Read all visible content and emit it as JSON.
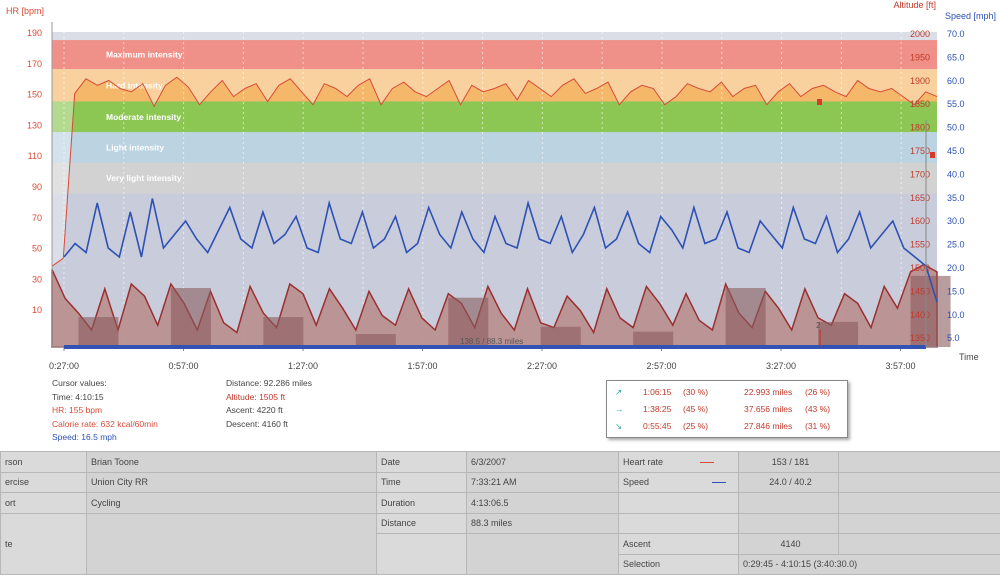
{
  "axes": {
    "hr_title": "HR [bpm]",
    "alt_title": "Altitude [ft]",
    "speed_title": "Speed [mph]",
    "time_title": "Time",
    "hr_ticks": [
      "190",
      "170",
      "150",
      "130",
      "110",
      "90",
      "70",
      "50",
      "30",
      "10"
    ],
    "alt_ticks": [
      "2000",
      "1950",
      "1900",
      "1850",
      "1800",
      "1750",
      "1700",
      "1650",
      "1600",
      "1550",
      "1500",
      "1450",
      "1400",
      "1350"
    ],
    "speed_ticks": [
      "70.0",
      "65.0",
      "60.0",
      "55.0",
      "50.0",
      "45.0",
      "40.0",
      "35.0",
      "30.0",
      "25.0",
      "20.0",
      "15.0",
      "10.0",
      "5.0"
    ],
    "time_ticks": [
      "0:27:00",
      "0:57:00",
      "1:27:00",
      "1:57:00",
      "2:27:00",
      "2:57:00",
      "3:27:00",
      "3:57:00"
    ]
  },
  "zones": [
    {
      "label": "Maximum intensity",
      "color": "#e9564b"
    },
    {
      "label": "Hard intensity",
      "color": "#f5b86a"
    },
    {
      "label": "Moderate intensity",
      "color": "#8cc653"
    },
    {
      "label": "Light intensity",
      "color": "#bcd3e2"
    },
    {
      "label": "Very light intensity",
      "color": "#d2d2d2"
    }
  ],
  "colors": {
    "hr": "#d84b37",
    "speed": "#2d51b4",
    "altitude": "#9a2f2f",
    "plot_bg": "#c9ccdb",
    "grid": "#ffffff"
  },
  "track_marker": "138.5 / 88.3 miles",
  "lap_marker": "2",
  "cursor": {
    "title": "Cursor values:",
    "time": "Time: 4:10:15",
    "hr": "HR: 155 bpm",
    "calorie": "Calorie rate: 632 kcal/60min",
    "speed": "Speed: 16.5 mph"
  },
  "stats": {
    "distance": "Distance: 92.286 miles",
    "altitude": "Altitude: 1505 ft",
    "ascent": "Ascent: 4220 ft",
    "descent": "Descent: 4160 ft"
  },
  "laps": [
    {
      "icon": "arrow-up-icon",
      "arrow": "↗",
      "time": "1:06:15",
      "pct": "(30 %)",
      "dist": "22.993 miles",
      "dpct": "(26 %)"
    },
    {
      "icon": "arrow-right-icon",
      "arrow": "→",
      "time": "1:38:25",
      "pct": "(45 %)",
      "dist": "37.656 miles",
      "dpct": "(43 %)"
    },
    {
      "icon": "arrow-down-icon",
      "arrow": "↘",
      "time": "0:55:45",
      "pct": "(25 %)",
      "dist": "27.846 miles",
      "dpct": "(31 %)"
    }
  ],
  "info": {
    "person_label": "rson",
    "person": "Brian Toone",
    "exercise_label": "ercise",
    "exercise": "Union City RR",
    "sport_label": "ort",
    "sport": "Cycling",
    "note_label": "te",
    "date_label": "Date",
    "date": "6/3/2007",
    "time_label": "Time",
    "time": "7:33:21 AM",
    "duration_label": "Duration",
    "duration": "4:13:06.5",
    "distance_label": "Distance",
    "distance": "88.3 miles",
    "hr_label": "Heart rate",
    "hr": "153 / 181",
    "speed_label": "Speed",
    "speed": "24.0 / 40.2",
    "ascent_label": "Ascent",
    "ascent": "4140",
    "selection_label": "Selection",
    "selection": "0:29:45 - 4:10:15 (3:40:30.0)"
  },
  "chart_data": {
    "type": "line",
    "title": "",
    "xlabel": "Time",
    "x_range": [
      "0:27:00",
      "4:10:15"
    ],
    "series": [
      {
        "name": "HR [bpm]",
        "axis": "left",
        "ylim": [
          0,
          195
        ],
        "values": [
          50,
          55,
          157,
          166,
          162,
          165,
          160,
          158,
          163,
          149,
          162,
          167,
          161,
          150,
          158,
          165,
          155,
          160,
          163,
          152,
          162,
          166,
          158,
          150,
          163,
          160,
          155,
          162,
          166,
          150,
          160,
          164,
          158,
          155,
          160,
          165,
          150,
          162,
          158,
          160,
          163,
          153,
          165,
          160,
          155,
          162,
          166,
          157,
          160,
          164,
          150,
          158,
          162,
          160,
          150,
          155,
          163,
          160,
          158,
          164,
          155,
          160,
          162,
          150,
          158,
          163,
          155,
          160,
          162,
          158,
          155,
          165,
          160,
          158,
          160,
          155,
          150,
          158,
          155
        ]
      },
      {
        "name": "Speed [mph]",
        "axis": "right",
        "ylim": [
          0,
          70
        ],
        "values": [
          20,
          23,
          21,
          32,
          22,
          20,
          30,
          20,
          33,
          22,
          25,
          28,
          24,
          21,
          26,
          31,
          24,
          22,
          30,
          23,
          25,
          29,
          22,
          21,
          32,
          24,
          23,
          30,
          22,
          24,
          29,
          21,
          23,
          31,
          25,
          22,
          30,
          24,
          21,
          29,
          23,
          22,
          32,
          24,
          23,
          29,
          21,
          25,
          31,
          22,
          24,
          30,
          23,
          21,
          29,
          26,
          22,
          31,
          23,
          24,
          30,
          22,
          21,
          28,
          25,
          22,
          31,
          24,
          23,
          29,
          21,
          24,
          30,
          22,
          25,
          28,
          22,
          20,
          18,
          10
        ]
      },
      {
        "name": "Altitude [ft]",
        "axis": "right",
        "ylim": [
          1350,
          2000
        ],
        "values": [
          1510,
          1450,
          1420,
          1385,
          1470,
          1385,
          1480,
          1455,
          1395,
          1480,
          1440,
          1385,
          1465,
          1400,
          1380,
          1475,
          1420,
          1390,
          1480,
          1460,
          1395,
          1470,
          1430,
          1385,
          1465,
          1415,
          1395,
          1470,
          1410,
          1385,
          1460,
          1440,
          1390,
          1475,
          1420,
          1385,
          1470,
          1400,
          1390,
          1455,
          1425,
          1380,
          1470,
          1410,
          1390,
          1475,
          1440,
          1395,
          1460,
          1405,
          1385,
          1480,
          1420,
          1390,
          1465,
          1430,
          1385,
          1470,
          1410,
          1395,
          1460,
          1440,
          1390,
          1475,
          1430,
          1505,
          1520,
          1505
        ]
      }
    ]
  }
}
